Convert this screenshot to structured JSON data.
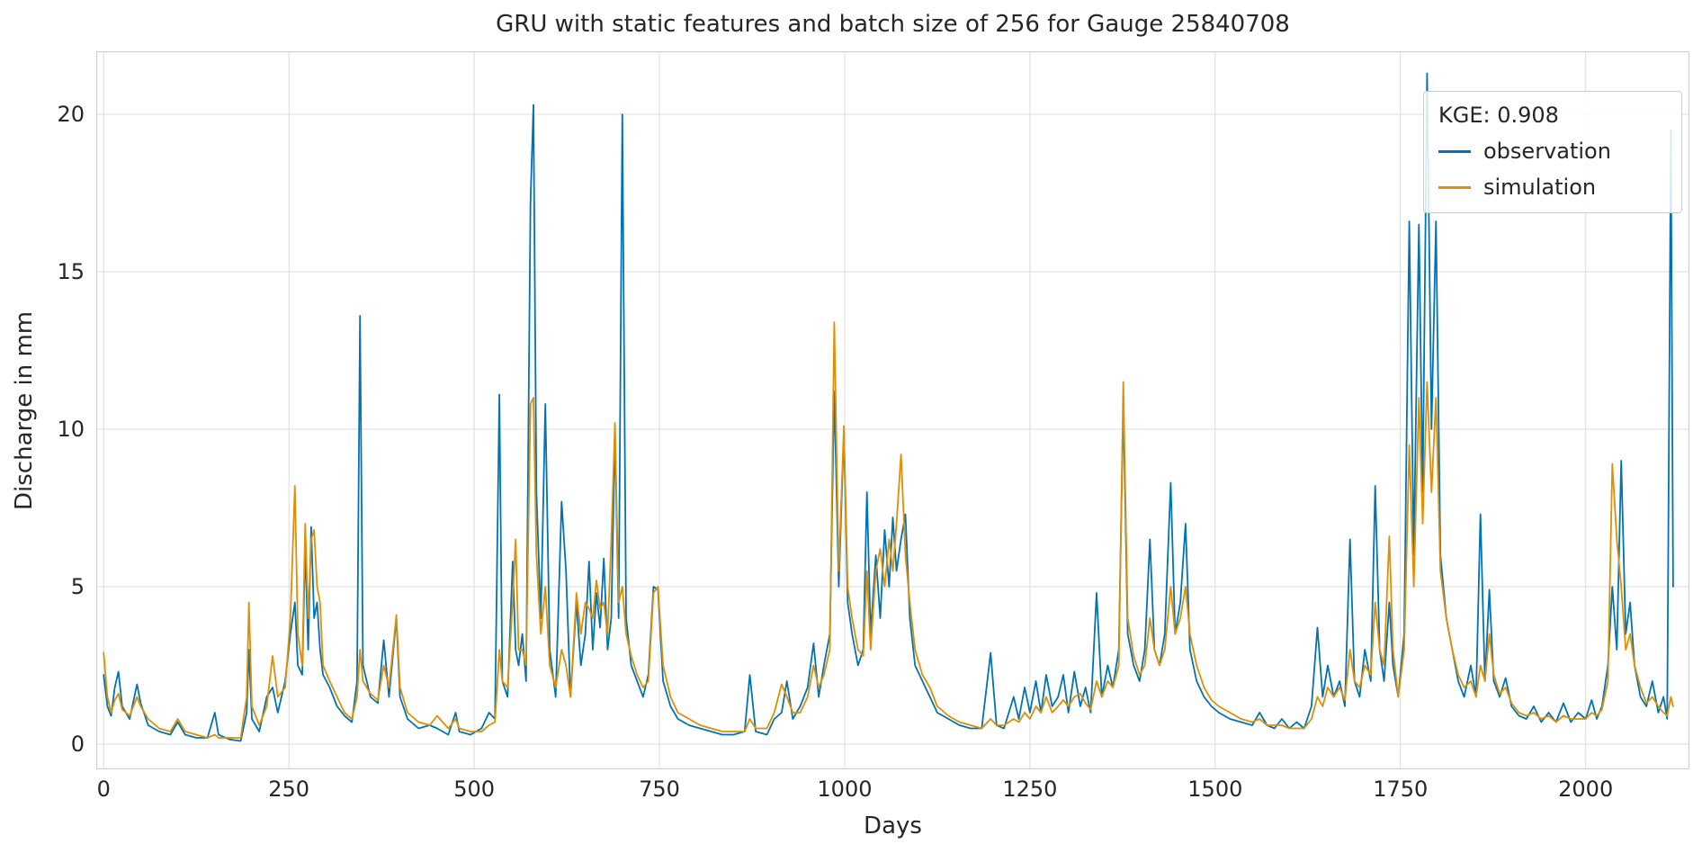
{
  "title": "GRU with static features and batch size of 256 for Gauge 25840708",
  "axes": {
    "xlabel": "Days",
    "ylabel": "Discharge in mm"
  },
  "legend": {
    "kge_label": "KGE: 0.908",
    "entries": [
      {
        "label": "observation",
        "color": "#0173b2"
      },
      {
        "label": "simulation",
        "color": "#de8f05"
      }
    ]
  },
  "chart_data": {
    "type": "line",
    "title": "GRU with static features and batch size of 256 for Gauge 25840708",
    "xlabel": "Days",
    "ylabel": "Discharge in mm",
    "xlim": [
      -10,
      2140
    ],
    "ylim": [
      -0.8,
      22.0
    ],
    "x_ticks": [
      0,
      250,
      500,
      750,
      1000,
      1250,
      1500,
      1750,
      2000
    ],
    "y_ticks": [
      0,
      5,
      10,
      15,
      20
    ],
    "grid": true,
    "grid_color": "#dcdcdc",
    "frame_color": "#cfcfcf",
    "legend_position": "upper right",
    "kge": 0.908,
    "x": [
      0,
      5,
      10,
      15,
      20,
      25,
      35,
      45,
      50,
      60,
      75,
      90,
      100,
      110,
      125,
      140,
      150,
      155,
      170,
      185,
      193,
      196,
      200,
      210,
      220,
      228,
      235,
      245,
      252,
      258,
      262,
      268,
      272,
      276,
      280,
      284,
      288,
      292,
      296,
      305,
      315,
      325,
      335,
      342,
      346,
      350,
      360,
      370,
      378,
      385,
      395,
      400,
      410,
      425,
      440,
      450,
      465,
      475,
      480,
      495,
      510,
      520,
      528,
      534,
      538,
      545,
      552,
      556,
      560,
      565,
      570,
      576,
      580,
      584,
      590,
      596,
      602,
      610,
      618,
      624,
      630,
      638,
      644,
      650,
      655,
      660,
      665,
      670,
      675,
      680,
      685,
      690,
      695,
      700,
      705,
      712,
      720,
      728,
      735,
      742,
      748,
      755,
      765,
      775,
      790,
      805,
      820,
      835,
      850,
      865,
      872,
      880,
      895,
      905,
      915,
      922,
      930,
      940,
      950,
      958,
      965,
      972,
      980,
      986,
      992,
      999,
      1004,
      1010,
      1018,
      1025,
      1030,
      1035,
      1042,
      1048,
      1054,
      1060,
      1065,
      1070,
      1076,
      1082,
      1088,
      1095,
      1105,
      1115,
      1125,
      1140,
      1155,
      1170,
      1185,
      1197,
      1205,
      1215,
      1228,
      1235,
      1243,
      1250,
      1258,
      1265,
      1272,
      1280,
      1288,
      1295,
      1302,
      1310,
      1318,
      1325,
      1332,
      1340,
      1347,
      1355,
      1362,
      1370,
      1376,
      1382,
      1390,
      1398,
      1405,
      1412,
      1418,
      1425,
      1432,
      1440,
      1446,
      1453,
      1460,
      1466,
      1475,
      1485,
      1495,
      1505,
      1520,
      1535,
      1550,
      1560,
      1570,
      1580,
      1590,
      1600,
      1610,
      1620,
      1630,
      1638,
      1645,
      1652,
      1660,
      1668,
      1675,
      1682,
      1688,
      1695,
      1702,
      1710,
      1716,
      1722,
      1728,
      1735,
      1740,
      1747,
      1755,
      1762,
      1768,
      1775,
      1780,
      1786,
      1792,
      1798,
      1804,
      1812,
      1820,
      1828,
      1836,
      1845,
      1852,
      1858,
      1864,
      1870,
      1876,
      1884,
      1892,
      1900,
      1910,
      1920,
      1930,
      1940,
      1950,
      1960,
      1970,
      1980,
      1990,
      2000,
      2008,
      2015,
      2022,
      2030,
      2036,
      2042,
      2048,
      2054,
      2060,
      2066,
      2074,
      2082,
      2090,
      2098,
      2105,
      2110,
      2115,
      2118
    ],
    "series": [
      {
        "name": "observation",
        "color": "#0173b2",
        "values": [
          2.2,
          1.2,
          0.9,
          1.8,
          2.3,
          1.2,
          0.8,
          1.9,
          1.3,
          0.6,
          0.4,
          0.3,
          0.7,
          0.3,
          0.2,
          0.2,
          1.0,
          0.3,
          0.15,
          0.1,
          1.0,
          3.0,
          0.8,
          0.4,
          1.5,
          1.8,
          1.0,
          2.0,
          3.5,
          4.5,
          2.5,
          2.2,
          6.3,
          3.0,
          6.9,
          4.0,
          4.5,
          3.0,
          2.2,
          1.8,
          1.2,
          0.9,
          0.7,
          2.0,
          13.6,
          2.5,
          1.5,
          1.3,
          3.3,
          1.5,
          4.0,
          1.5,
          0.8,
          0.5,
          0.6,
          0.5,
          0.3,
          1.0,
          0.4,
          0.3,
          0.5,
          1.0,
          0.8,
          11.1,
          2.0,
          1.5,
          5.8,
          3.0,
          2.5,
          3.5,
          2.0,
          17.2,
          20.3,
          8.0,
          4.0,
          10.8,
          3.0,
          1.5,
          7.7,
          5.5,
          1.5,
          4.5,
          2.5,
          3.5,
          5.8,
          3.0,
          4.8,
          3.7,
          5.9,
          3.0,
          4.0,
          9.9,
          4.0,
          20.0,
          4.0,
          2.5,
          2.0,
          1.5,
          2.2,
          5.0,
          4.9,
          2.0,
          1.2,
          0.8,
          0.6,
          0.5,
          0.4,
          0.3,
          0.3,
          0.4,
          2.2,
          0.4,
          0.3,
          0.8,
          1.0,
          2.0,
          0.8,
          1.2,
          1.8,
          3.2,
          1.5,
          2.5,
          3.5,
          11.2,
          5.0,
          9.9,
          4.5,
          3.5,
          2.5,
          3.0,
          8.0,
          3.5,
          6.0,
          4.0,
          6.8,
          5.0,
          7.2,
          5.5,
          6.5,
          7.3,
          4.0,
          2.5,
          2.0,
          1.5,
          1.0,
          0.8,
          0.6,
          0.5,
          0.5,
          2.9,
          0.6,
          0.5,
          1.5,
          0.8,
          1.8,
          1.0,
          2.0,
          1.0,
          2.2,
          1.2,
          1.5,
          2.2,
          1.0,
          2.3,
          1.2,
          1.8,
          1.0,
          4.8,
          1.5,
          2.5,
          1.8,
          3.0,
          10.8,
          3.5,
          2.5,
          2.0,
          3.0,
          6.5,
          3.0,
          2.5,
          3.5,
          8.3,
          3.5,
          4.5,
          7.0,
          3.0,
          2.0,
          1.5,
          1.2,
          1.0,
          0.8,
          0.7,
          0.6,
          1.0,
          0.6,
          0.5,
          0.8,
          0.5,
          0.7,
          0.5,
          1.2,
          3.7,
          1.5,
          2.5,
          1.5,
          2.0,
          1.2,
          6.5,
          2.0,
          1.5,
          3.0,
          2.0,
          8.2,
          3.0,
          2.0,
          4.5,
          2.5,
          1.5,
          3.5,
          16.6,
          6.0,
          16.5,
          8.0,
          21.3,
          10.0,
          16.6,
          6.0,
          4.0,
          3.0,
          2.0,
          1.5,
          2.5,
          1.5,
          7.3,
          2.0,
          4.9,
          2.0,
          1.5,
          2.1,
          1.2,
          0.9,
          0.8,
          1.2,
          0.7,
          1.0,
          0.7,
          1.3,
          0.7,
          1.0,
          0.8,
          1.4,
          0.8,
          1.2,
          2.5,
          5.0,
          3.0,
          9.0,
          3.5,
          4.5,
          2.5,
          1.5,
          1.2,
          2.0,
          1.0,
          1.5,
          0.8,
          19.5,
          5.0
        ]
      },
      {
        "name": "simulation",
        "color": "#de8f05",
        "values": [
          2.9,
          1.5,
          1.0,
          1.4,
          1.6,
          1.1,
          0.9,
          1.5,
          1.2,
          0.8,
          0.5,
          0.4,
          0.8,
          0.4,
          0.3,
          0.2,
          0.3,
          0.2,
          0.2,
          0.2,
          1.5,
          4.5,
          1.2,
          0.6,
          1.2,
          2.8,
          1.5,
          1.8,
          4.0,
          8.2,
          3.5,
          2.5,
          7.0,
          4.0,
          6.5,
          6.8,
          5.0,
          4.5,
          2.5,
          2.0,
          1.5,
          1.0,
          0.8,
          1.5,
          3.0,
          2.0,
          1.6,
          1.4,
          2.5,
          1.8,
          4.1,
          1.8,
          1.0,
          0.7,
          0.6,
          0.9,
          0.5,
          0.8,
          0.5,
          0.4,
          0.4,
          0.6,
          0.7,
          3.0,
          2.0,
          1.8,
          4.5,
          6.5,
          3.0,
          3.0,
          2.5,
          10.8,
          11.0,
          6.0,
          3.5,
          5.0,
          2.5,
          1.8,
          3.0,
          2.5,
          1.5,
          4.8,
          3.5,
          4.5,
          4.3,
          4.0,
          5.2,
          4.3,
          4.5,
          3.5,
          6.5,
          10.2,
          4.5,
          5.0,
          3.5,
          2.8,
          2.2,
          1.8,
          2.0,
          4.8,
          5.0,
          2.5,
          1.5,
          1.0,
          0.8,
          0.6,
          0.5,
          0.4,
          0.4,
          0.4,
          0.8,
          0.5,
          0.5,
          1.0,
          1.9,
          1.5,
          1.0,
          1.0,
          1.5,
          2.5,
          1.8,
          2.2,
          3.0,
          13.4,
          5.5,
          10.1,
          5.0,
          4.0,
          3.0,
          2.8,
          5.5,
          3.0,
          5.5,
          6.2,
          5.0,
          6.5,
          5.5,
          7.0,
          9.2,
          6.0,
          4.5,
          3.0,
          2.2,
          1.8,
          1.2,
          0.9,
          0.7,
          0.6,
          0.5,
          0.8,
          0.6,
          0.6,
          0.8,
          0.7,
          1.0,
          0.8,
          1.2,
          1.0,
          1.5,
          1.0,
          1.2,
          1.4,
          1.2,
          1.5,
          1.6,
          1.3,
          1.1,
          2.0,
          1.5,
          2.0,
          1.8,
          2.5,
          11.5,
          4.0,
          2.8,
          2.2,
          2.5,
          4.0,
          3.0,
          2.5,
          3.0,
          5.0,
          3.5,
          4.0,
          5.0,
          3.5,
          2.5,
          1.8,
          1.4,
          1.2,
          1.0,
          0.8,
          0.7,
          0.8,
          0.6,
          0.6,
          0.6,
          0.5,
          0.5,
          0.5,
          0.8,
          1.5,
          1.2,
          1.8,
          1.5,
          1.8,
          1.4,
          3.0,
          2.0,
          1.8,
          2.5,
          2.2,
          4.5,
          3.0,
          2.5,
          6.6,
          3.0,
          1.5,
          3.0,
          9.5,
          5.0,
          11.0,
          7.0,
          11.5,
          8.0,
          11.0,
          5.5,
          4.0,
          3.0,
          2.2,
          1.8,
          2.0,
          1.5,
          2.5,
          2.0,
          3.5,
          2.2,
          1.6,
          1.8,
          1.3,
          1.0,
          0.9,
          1.0,
          0.8,
          0.9,
          0.7,
          0.9,
          0.8,
          0.8,
          0.8,
          1.0,
          0.9,
          1.1,
          2.0,
          8.9,
          6.5,
          5.0,
          3.0,
          3.5,
          2.5,
          1.8,
          1.3,
          1.5,
          1.2,
          1.0,
          0.9,
          1.5,
          1.2
        ]
      }
    ]
  }
}
